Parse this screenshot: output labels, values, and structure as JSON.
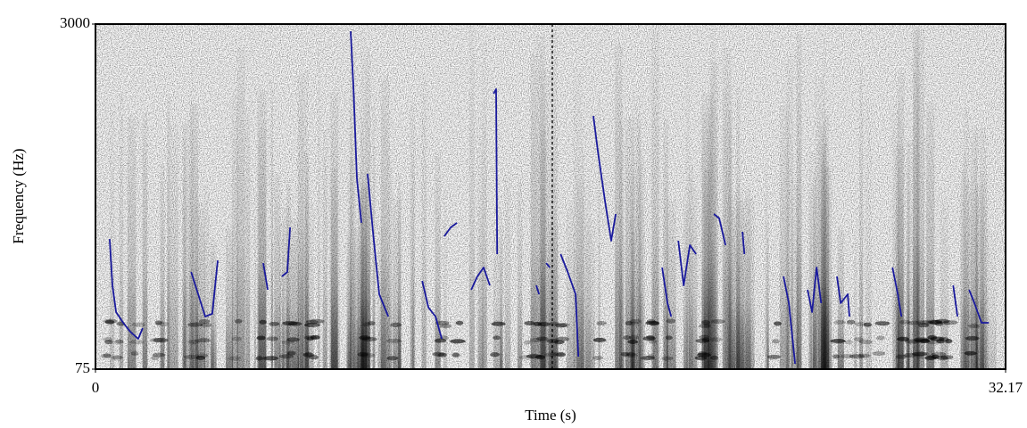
{
  "chart_data": {
    "type": "pitch-spectrogram",
    "x_label": "Time (s)",
    "y_label": "Frequency (Hz)",
    "xlim": [
      0,
      32.17
    ],
    "xticks": [
      0,
      32.17
    ],
    "ylim": [
      75,
      3000
    ],
    "yticks": [
      75,
      3000
    ],
    "color": "#1a1a9c",
    "x": [
      0.5,
      0.6,
      0.73,
      0.98,
      1.23,
      1.51,
      1.67,
      null,
      3.38,
      3.63,
      3.88,
      4.13,
      4.32,
      null,
      5.93,
      6.09,
      null,
      6.59,
      6.78,
      6.88,
      null,
      9.02,
      9.12,
      9.24,
      9.4,
      null,
      9.62,
      9.81,
      10.03,
      10.35,
      null,
      11.55,
      11.77,
      12.02,
      12.24,
      null,
      12.33,
      12.56,
      12.78,
      null,
      13.28,
      13.5,
      13.72,
      13.94,
      null,
      14.07,
      14.16,
      14.2,
      null,
      15.58,
      15.68,
      null,
      15.93,
      16.06,
      null,
      16.44,
      16.69,
      16.97,
      17.07,
      null,
      17.6,
      17.76,
      18.01,
      18.23,
      18.39,
      null,
      20.03,
      20.22,
      20.35,
      null,
      20.6,
      20.79,
      21.01,
      21.23,
      null,
      21.86,
      22.05,
      22.27,
      null,
      22.87,
      22.94,
      null,
      24.32,
      24.51,
      24.64,
      24.73,
      null,
      25.17,
      25.33,
      25.49,
      25.65,
      null,
      26.21,
      26.34,
      26.59,
      26.65,
      null,
      28.17,
      28.36,
      28.49,
      null,
      30.32,
      30.47,
      null,
      30.88,
      31.07,
      31.32,
      31.58
    ],
    "values": [
      1178,
      785,
      559,
      468,
      392,
      332,
      423,
      null,
      899,
      710,
      521,
      544,
      997,
      null,
      974,
      748,
      null,
      861,
      899,
      1277,
      null,
      2939,
      2448,
      1692,
      1315,
      null,
      1730,
      1239,
      710,
      521,
      null,
      823,
      597,
      521,
      332,
      null,
      1201,
      1277,
      1315,
      null,
      748,
      861,
      937,
      785,
      null,
      2410,
      2448,
      1050,
      null,
      785,
      710,
      null,
      974,
      937,
      null,
      1050,
      899,
      710,
      181,
      null,
      2221,
      1919,
      1503,
      1163,
      1390,
      null,
      937,
      634,
      521,
      null,
      1163,
      785,
      1126,
      1050,
      null,
      1390,
      1352,
      1126,
      null,
      1239,
      1050,
      null,
      861,
      634,
      332,
      120,
      null,
      748,
      559,
      937,
      634,
      null,
      861,
      634,
      710,
      521,
      null,
      937,
      710,
      521,
      null,
      785,
      521,
      null,
      748,
      634,
      468,
      468
    ]
  }
}
